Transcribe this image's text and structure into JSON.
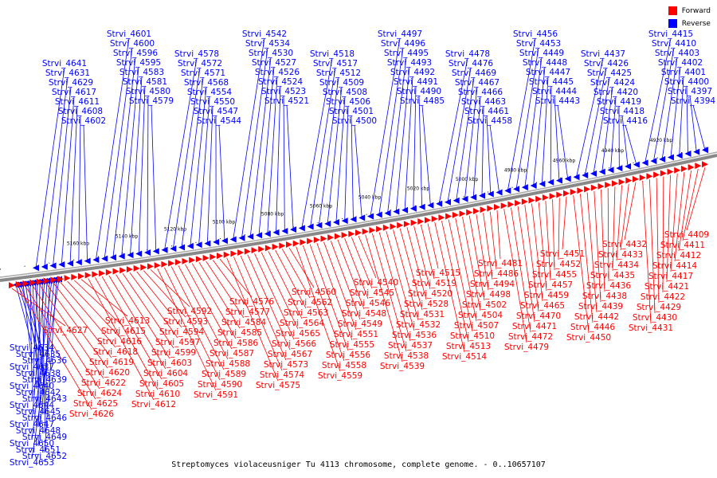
{
  "legend": [
    {
      "label": "Forward",
      "color": "#ff0000"
    },
    {
      "label": "Reverse",
      "color": "#0000ff"
    }
  ],
  "caption": "Streptomyces violaceusniger Tu 4113 chromosome, complete genome. - 0..10657107",
  "scale_ticks": [
    {
      "label": "4920 kbp",
      "kbp": 4920
    },
    {
      "label": "4940 kbp",
      "kbp": 4940
    },
    {
      "label": "4960 kbp",
      "kbp": 4960
    },
    {
      "label": "4980 kbp",
      "kbp": 4980
    },
    {
      "label": "5000 kbp",
      "kbp": 5000
    },
    {
      "label": "5020 kbp",
      "kbp": 5020
    },
    {
      "label": "5040 kbp",
      "kbp": 5040
    },
    {
      "label": "5060 kbp",
      "kbp": 5060
    },
    {
      "label": "5080 kbp",
      "kbp": 5080
    },
    {
      "label": "5100 kbp",
      "kbp": 5100
    },
    {
      "label": "5120 kbp",
      "kbp": 5120
    },
    {
      "label": "5140 kbp",
      "kbp": 5140
    },
    {
      "label": "5160 kbp",
      "kbp": 5160
    }
  ],
  "reverse_genes": [
    "Strvi_4394",
    "Strvi_4397",
    "Strvi_4400",
    "Strvi_4401",
    "Strvi_4402",
    "Strvi_4403",
    "Strvi_4410",
    "Strvi_4415",
    "Strvi_4416",
    "Strvi_4418",
    "Strvi_4419",
    "Strvi_4420",
    "Strvi_4424",
    "Strvi_4425",
    "Strvi_4426",
    "Strvi_4437",
    "Strvi_4443",
    "Strvi_4444",
    "Strvi_4445",
    "Strvi_4447",
    "Strvi_4448",
    "Strvi_4449",
    "Strvi_4453",
    "Strvi_4456",
    "Strvi_4458",
    "Strvi_4461",
    "Strvi_4463",
    "Strvi_4466",
    "Strvi_4467",
    "Strvi_4469",
    "Strvi_4476",
    "Strvi_4478",
    "Strvi_4485",
    "Strvi_4490",
    "Strvi_4491",
    "Strvi_4492",
    "Strvi_4493",
    "Strvi_4495",
    "Strvi_4496",
    "Strvi_4497",
    "Strvi_4500",
    "Strvi_4501",
    "Strvi_4506",
    "Strvi_4508",
    "Strvi_4509",
    "Strvi_4512",
    "Strvi_4517",
    "Strvi_4518",
    "Strvi_4521",
    "Strvi_4523",
    "Strvi_4524",
    "Strvi_4526",
    "Strvi_4527",
    "Strvi_4530",
    "Strvi_4534",
    "Strvi_4542",
    "Strvi_4544",
    "Strvi_4547",
    "Strvi_4550",
    "Strvi_4554",
    "Strvi_4568",
    "Strvi_4571",
    "Strvi_4572",
    "Strvi_4578",
    "Strvi_4579",
    "Strvi_4580",
    "Strvi_4581",
    "Strvi_4583",
    "Strvi_4595",
    "Strvi_4596",
    "Strvi_4600",
    "Strvi_4601",
    "Strvi_4602",
    "Strvi_4608",
    "Strvi_4611",
    "Strvi_4617",
    "Strvi_4629",
    "Strvi_4631",
    "Strvi_4641",
    "Strvi_4634",
    "Strvi_4635",
    "Strvi_4636",
    "Strvi_4637",
    "Strvi_4638",
    "Strvi_4639",
    "Strvi_4640",
    "Strvi_4642",
    "Strvi_4643",
    "Strvi_4644",
    "Strvi_4645",
    "Strvi_4646",
    "Strvi_4647",
    "Strvi_4648",
    "Strvi_4649",
    "Strvi_4650",
    "Strvi_4651",
    "Strvi_4652",
    "Strvi_4653"
  ],
  "forward_genes": [
    "Strvi_4409",
    "Strvi_4411",
    "Strvi_4412",
    "Strvi_4414",
    "Strvi_4417",
    "Strvi_4421",
    "Strvi_4422",
    "Strvi_4429",
    "Strvi_4430",
    "Strvi_4431",
    "Strvi_4432",
    "Strvi_4433",
    "Strvi_4434",
    "Strvi_4435",
    "Strvi_4436",
    "Strvi_4438",
    "Strvi_4439",
    "Strvi_4442",
    "Strvi_4446",
    "Strvi_4450",
    "Strvi_4451",
    "Strvi_4452",
    "Strvi_4455",
    "Strvi_4457",
    "Strvi_4459",
    "Strvi_4465",
    "Strvi_4470",
    "Strvi_4471",
    "Strvi_4472",
    "Strvi_4479",
    "Strvi_4481",
    "Strvi_4486",
    "Strvi_4494",
    "Strvi_4498",
    "Strvi_4502",
    "Strvi_4504",
    "Strvi_4507",
    "Strvi_4510",
    "Strvi_4513",
    "Strvi_4514",
    "Strvi_4515",
    "Strvi_4519",
    "Strvi_4520",
    "Strvi_4528",
    "Strvi_4531",
    "Strvi_4532",
    "Strvi_4536",
    "Strvi_4537",
    "Strvi_4538",
    "Strvi_4539",
    "Strvi_4540",
    "Strvi_4545",
    "Strvi_4546",
    "Strvi_4548",
    "Strvi_4549",
    "Strvi_4551",
    "Strvi_4555",
    "Strvi_4556",
    "Strvi_4558",
    "Strvi_4559",
    "Strvi_4560",
    "Strvi_4562",
    "Strvi_4563",
    "Strvi_4564",
    "Strvi_4565",
    "Strvi_4566",
    "Strvi_4567",
    "Strvi_4573",
    "Strvi_4574",
    "Strvi_4575",
    "Strvi_4576",
    "Strvi_4577",
    "Strvi_4584",
    "Strvi_4585",
    "Strvi_4586",
    "Strvi_4587",
    "Strvi_4588",
    "Strvi_4589",
    "Strvi_4590",
    "Strvi_4591",
    "Strvi_4592",
    "Strvi_4593",
    "Strvi_4594",
    "Strvi_4597",
    "Strvi_4599",
    "Strvi_4603",
    "Strvi_4604",
    "Strvi_4605",
    "Strvi_4610",
    "Strvi_4612",
    "Strvi_4613",
    "Strvi_4615",
    "Strvi_4616",
    "Strvi_4618",
    "Strvi_4619",
    "Strvi_4620",
    "Strvi_4622",
    "Strvi_4624",
    "Strvi_4625",
    "Strvi_4626",
    "Strvi_4627"
  ]
}
